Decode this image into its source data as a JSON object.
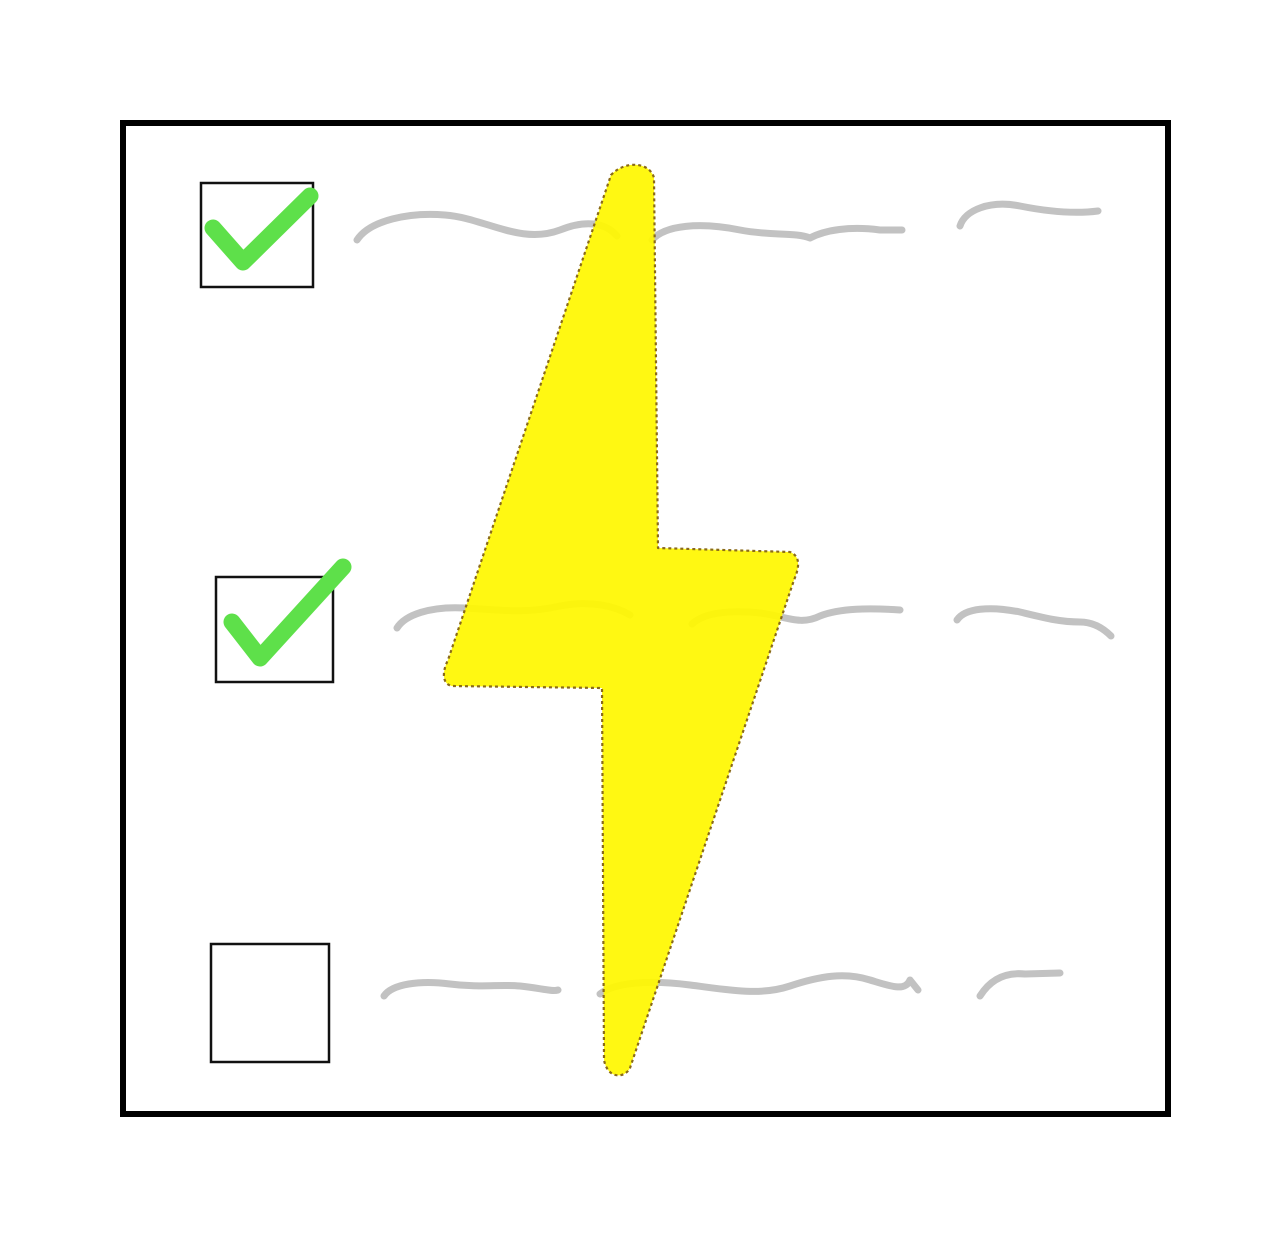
{
  "sketch": {
    "description_icon": "checklist-with-lightning-bolt-icon",
    "colors": {
      "frame": "#000000",
      "checkbox_border": "#111111",
      "checkmark": "#5ee04a",
      "placeholder_line": "#c2c2c2",
      "bolt_fill": "#fff700",
      "bolt_outline": "#8a6a1a"
    },
    "checklist": [
      {
        "checked": true,
        "icon": "checkmark-icon"
      },
      {
        "checked": true,
        "icon": "checkmark-icon"
      },
      {
        "checked": false,
        "icon": ""
      }
    ],
    "overlay_icon": "lightning-bolt-icon"
  }
}
